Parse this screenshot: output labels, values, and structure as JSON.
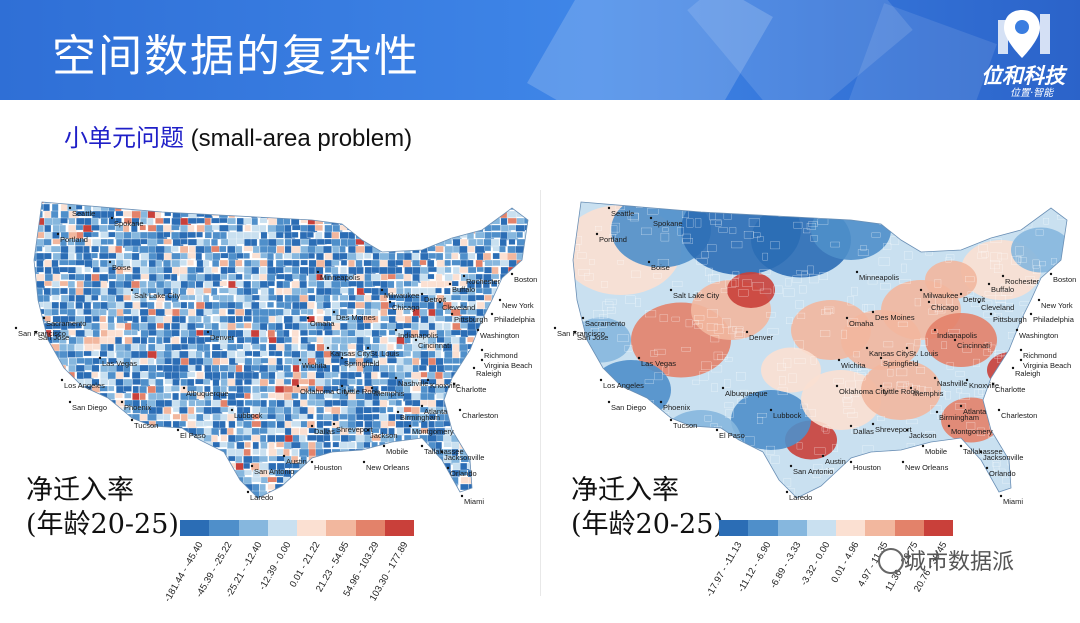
{
  "slide": {
    "title": "空间数据的复杂性",
    "subtitle_cn": "小单元问题",
    "subtitle_en": " (small-area problem)"
  },
  "logo": {
    "name": "位和科技",
    "slogan": "位置·智能"
  },
  "watermark": "城市数据派",
  "colors": {
    "header": "#3a7de0",
    "classes": [
      "#2b6db5",
      "#4f8fca",
      "#86b7de",
      "#c9e0f0",
      "#fbe0d2",
      "#f2b79e",
      "#e3826a",
      "#c9403a",
      "#b2182b"
    ]
  },
  "maps": [
    {
      "legend_title": "净迁入率",
      "legend_subtitle": "(年龄20-25)",
      "classes": [
        "-181.44 - -45.40",
        "-45.39 - -25.22",
        "-25.21 - -12.40",
        "-12.39 - 0.00",
        "0.01 - 21.22",
        "21.23 - 54.95",
        "54.96 - 103.29",
        "103.30 - 177.89"
      ],
      "cities": [
        "Seattle",
        "Spokane",
        "Portland",
        "Boise",
        "San Francisco",
        "Sacramento",
        "San Jose",
        "Las Vegas",
        "Los Angeles",
        "San Diego",
        "Phoenix",
        "Tucson",
        "Albuquerque",
        "Denver",
        "El Paso",
        "Lubbock",
        "Salt Lake City",
        "Minneapolis",
        "Omaha",
        "Des Moines",
        "Kansas City",
        "Wichita",
        "Oklahoma City",
        "Dallas",
        "Austin",
        "San Antonio",
        "Houston",
        "Shreveport",
        "Jackson",
        "New Orleans",
        "Mobile",
        "Memphis",
        "Little Rock",
        "Springfield",
        "St. Louis",
        "Chicago",
        "Milwaukee",
        "Detroit",
        "Cleveland",
        "Cincinnati",
        "Indianapolis",
        "Nashville",
        "Knoxville",
        "Birmingham",
        "Atlanta",
        "Montgomery",
        "Tallahassee",
        "Jacksonville",
        "Orlando",
        "Miami",
        "Charlotte",
        "Richmond",
        "Raleigh",
        "Virginia Beach",
        "Washington",
        "Philadelphia",
        "Pittsburgh",
        "Buffalo",
        "Rochester",
        "New York",
        "Boston",
        "Charleston",
        "Laredo"
      ]
    },
    {
      "legend_title": "净迁入率",
      "legend_subtitle": "(年龄20-25)",
      "classes": [
        "-17.97 - -11.13",
        "-11.12 - -6.90",
        "-6.89 - -3.33",
        "-3.32 - 0.00",
        "0.01 - 4.96",
        "4.97 - 11.35",
        "11.36 - 20.75",
        "20.76 - 39.45"
      ]
    }
  ]
}
